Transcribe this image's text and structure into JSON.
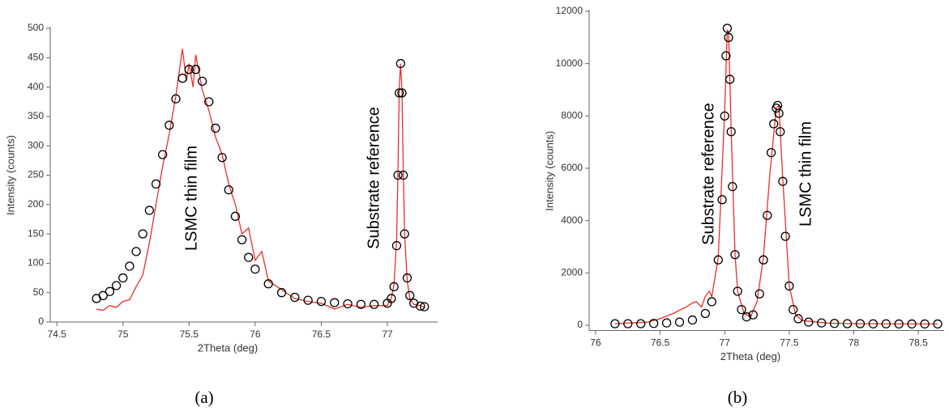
{
  "chart_data": [
    {
      "type": "line",
      "x_label": "2Theta (deg)",
      "y_label": "Intensity (counts)",
      "annotations": [
        "LSMC thin film",
        "Substrate reference"
      ],
      "caption": "(a)",
      "xlim": [
        74.45,
        77.38
      ],
      "xticks": [
        74.5,
        75,
        75.5,
        76,
        76.5,
        77
      ],
      "ylim": [
        0,
        500
      ],
      "yticks": [
        0,
        50,
        100,
        150,
        200,
        250,
        300,
        350,
        400,
        450,
        500
      ],
      "series": [
        {
          "style": "line",
          "color": "#e8302a",
          "x": [
            74.8,
            74.85,
            74.9,
            74.95,
            75.0,
            75.05,
            75.1,
            75.15,
            75.2,
            75.25,
            75.3,
            75.35,
            75.4,
            75.45,
            75.48,
            75.5,
            75.53,
            75.55,
            75.6,
            75.65,
            75.7,
            75.75,
            75.8,
            75.85,
            75.9,
            75.95,
            76.0,
            76.05,
            76.1,
            76.2,
            76.3,
            76.4,
            76.5,
            76.6,
            76.7,
            76.8,
            76.9,
            77.0,
            77.03,
            77.05,
            77.07,
            77.08,
            77.09,
            77.1,
            77.11,
            77.12,
            77.13,
            77.15,
            77.17,
            77.2,
            77.25,
            77.28
          ],
          "values": [
            22,
            20,
            28,
            25,
            35,
            38,
            60,
            80,
            135,
            200,
            265,
            320,
            385,
            465,
            410,
            440,
            400,
            455,
            395,
            360,
            315,
            285,
            235,
            200,
            150,
            160,
            105,
            120,
            70,
            55,
            40,
            35,
            32,
            22,
            30,
            25,
            28,
            28,
            40,
            65,
            140,
            260,
            400,
            440,
            395,
            260,
            150,
            70,
            40,
            30,
            28,
            25
          ]
        },
        {
          "style": "markers",
          "color": "#000000",
          "x": [
            74.8,
            74.85,
            74.9,
            74.95,
            75.0,
            75.05,
            75.1,
            75.15,
            75.2,
            75.25,
            75.3,
            75.35,
            75.4,
            75.45,
            75.5,
            75.55,
            75.6,
            75.65,
            75.7,
            75.75,
            75.8,
            75.85,
            75.9,
            75.95,
            76.0,
            76.1,
            76.2,
            76.3,
            76.4,
            76.5,
            76.6,
            76.7,
            76.8,
            76.9,
            77.0,
            77.03,
            77.05,
            77.07,
            77.08,
            77.09,
            77.1,
            77.11,
            77.12,
            77.13,
            77.15,
            77.17,
            77.2,
            77.25,
            77.28
          ],
          "values": [
            40,
            45,
            52,
            62,
            75,
            95,
            120,
            150,
            190,
            235,
            285,
            335,
            380,
            415,
            430,
            430,
            410,
            375,
            330,
            280,
            225,
            180,
            140,
            110,
            90,
            65,
            50,
            42,
            37,
            35,
            33,
            31,
            30,
            30,
            32,
            40,
            60,
            130,
            250,
            390,
            440,
            390,
            250,
            150,
            75,
            45,
            32,
            27,
            26
          ]
        }
      ]
    },
    {
      "type": "line",
      "x_label": "2Theta (deg)",
      "y_label": "Intensity (counts)",
      "annotations": [
        "Substrate reference",
        "LSMC thin film"
      ],
      "caption": "(b)",
      "xlim": [
        75.95,
        78.7
      ],
      "xticks": [
        76,
        76.5,
        77,
        77.5,
        78,
        78.5
      ],
      "ylim": [
        -200,
        12000
      ],
      "yticks": [
        0,
        2000,
        4000,
        6000,
        8000,
        10000,
        12000
      ],
      "series": [
        {
          "style": "line",
          "color": "#e8302a",
          "x": [
            76.15,
            76.4,
            76.5,
            76.6,
            76.7,
            76.75,
            76.78,
            76.82,
            76.85,
            76.88,
            76.9,
            76.95,
            77.0,
            77.02,
            77.03,
            77.05,
            77.08,
            77.1,
            77.15,
            77.2,
            77.25,
            77.3,
            77.35,
            77.4,
            77.42,
            77.45,
            77.5,
            77.55,
            77.6,
            77.8,
            78.0,
            78.65
          ],
          "values": [
            60,
            120,
            250,
            450,
            700,
            850,
            900,
            700,
            1100,
            1300,
            1100,
            2600,
            8200,
            11300,
            11200,
            7500,
            2700,
            1300,
            450,
            320,
            900,
            2600,
            5800,
            8300,
            8400,
            5600,
            1500,
            400,
            180,
            80,
            60,
            50
          ]
        },
        {
          "style": "markers",
          "color": "#000000",
          "x": [
            76.15,
            76.25,
            76.35,
            76.45,
            76.55,
            76.65,
            76.75,
            76.85,
            76.9,
            76.95,
            76.98,
            77.0,
            77.01,
            77.02,
            77.03,
            77.04,
            77.05,
            77.06,
            77.08,
            77.1,
            77.13,
            77.17,
            77.22,
            77.27,
            77.3,
            77.33,
            77.36,
            77.38,
            77.4,
            77.41,
            77.42,
            77.43,
            77.45,
            77.47,
            77.5,
            77.53,
            77.57,
            77.65,
            77.75,
            77.85,
            77.95,
            78.05,
            78.15,
            78.25,
            78.35,
            78.45,
            78.55,
            78.65
          ],
          "values": [
            60,
            60,
            60,
            70,
            90,
            120,
            200,
            450,
            900,
            2500,
            4800,
            8000,
            10300,
            11350,
            11000,
            9400,
            7400,
            5300,
            2700,
            1300,
            600,
            320,
            400,
            1200,
            2500,
            4200,
            6600,
            7700,
            8300,
            8400,
            8100,
            7400,
            5500,
            3400,
            1500,
            600,
            250,
            120,
            90,
            70,
            60,
            60,
            55,
            55,
            50,
            50,
            50,
            50
          ]
        }
      ]
    }
  ]
}
